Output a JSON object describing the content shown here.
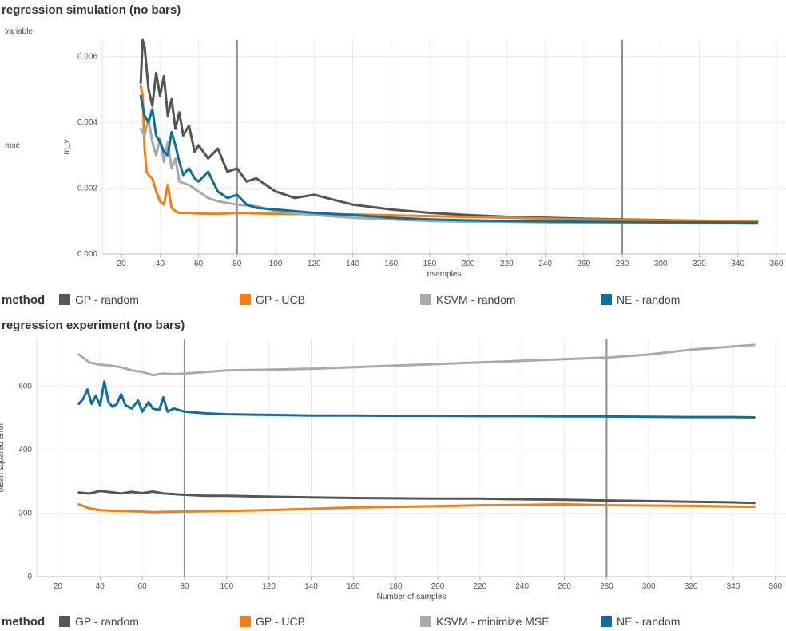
{
  "colors": {
    "GP - random": "#555555",
    "GP - UCB": "#f57e10",
    "KSVM - random": "#aaaaaa",
    "KSVM - minimize MSE": "#aaaaaa",
    "NE - random": "#0d6fa0"
  },
  "top": {
    "title": "regression simulation (no bars)",
    "variable_header": "variable",
    "row_label": "mse",
    "legend_title": "method",
    "legend": [
      "GP - random",
      "GP - UCB",
      "KSVM - random",
      "NE - random"
    ]
  },
  "bottom": {
    "title": "regression experiment (no bars)",
    "legend_title": "method",
    "legend": [
      "GP - random",
      "GP - UCB",
      "KSVM - minimize MSE",
      "NE - random"
    ]
  },
  "chart_data": [
    {
      "type": "line",
      "title": "regression simulation (no bars)",
      "xlabel": "nsamples",
      "ylabel": "m_v",
      "xlim": [
        10,
        365
      ],
      "ylim": [
        0,
        0.0065
      ],
      "xticks": [
        20,
        40,
        60,
        80,
        100,
        120,
        140,
        160,
        180,
        200,
        220,
        240,
        260,
        280,
        300,
        320,
        340,
        360
      ],
      "yticks": [
        0.0,
        0.002,
        0.004,
        0.006
      ],
      "yticks_labels": [
        "0.000",
        "0.002",
        "0.004",
        "0.006"
      ],
      "reference_lines_x": [
        80,
        280
      ],
      "grid": true,
      "series": [
        {
          "name": "GP - random",
          "x": [
            30,
            31,
            32,
            34,
            36,
            38,
            40,
            42,
            44,
            46,
            48,
            50,
            52,
            55,
            58,
            60,
            65,
            70,
            75,
            80,
            85,
            90,
            100,
            110,
            120,
            140,
            160,
            180,
            200,
            220,
            240,
            260,
            280,
            300,
            320,
            340,
            350
          ],
          "values": [
            0.0052,
            0.0065,
            0.0063,
            0.005,
            0.0045,
            0.0055,
            0.0048,
            0.0054,
            0.0042,
            0.0047,
            0.0038,
            0.0043,
            0.0036,
            0.0039,
            0.0031,
            0.0033,
            0.0029,
            0.0032,
            0.0025,
            0.0026,
            0.0022,
            0.0023,
            0.0019,
            0.0017,
            0.0018,
            0.0015,
            0.00135,
            0.00125,
            0.00118,
            0.00113,
            0.0011,
            0.00107,
            0.00105,
            0.00103,
            0.00101,
            0.001,
            0.00099
          ]
        },
        {
          "name": "GP - UCB",
          "x": [
            30,
            31,
            32,
            33,
            34,
            36,
            38,
            40,
            42,
            44,
            46,
            48,
            50,
            55,
            60,
            70,
            80,
            100,
            140,
            180,
            220,
            260,
            300,
            340,
            350
          ],
          "values": [
            0.0051,
            0.0048,
            0.0032,
            0.0025,
            0.0024,
            0.0023,
            0.0019,
            0.0016,
            0.0015,
            0.0021,
            0.0014,
            0.0013,
            0.00125,
            0.00125,
            0.00123,
            0.00122,
            0.00125,
            0.00122,
            0.0012,
            0.00115,
            0.0011,
            0.00105,
            0.00102,
            0.001,
            0.001
          ]
        },
        {
          "name": "KSVM - random",
          "x": [
            30,
            32,
            34,
            36,
            38,
            40,
            42,
            44,
            46,
            48,
            50,
            55,
            60,
            65,
            70,
            80,
            90,
            100,
            120,
            140,
            160,
            180,
            200,
            220,
            240,
            260,
            280,
            300,
            320,
            340,
            350
          ],
          "values": [
            0.0038,
            0.0036,
            0.0041,
            0.0034,
            0.003,
            0.0035,
            0.0028,
            0.0034,
            0.0026,
            0.0029,
            0.0022,
            0.0021,
            0.0019,
            0.0017,
            0.0016,
            0.0015,
            0.00145,
            0.0013,
            0.00118,
            0.0011,
            0.00105,
            0.001,
            0.00098,
            0.00098,
            0.00096,
            0.00095,
            0.00095,
            0.00094,
            0.00093,
            0.00093,
            0.00092
          ]
        },
        {
          "name": "NE - random",
          "x": [
            30,
            32,
            34,
            36,
            38,
            40,
            42,
            44,
            46,
            48,
            50,
            52,
            55,
            58,
            60,
            65,
            70,
            75,
            80,
            85,
            90,
            100,
            110,
            120,
            140,
            160,
            180,
            200,
            220,
            240,
            260,
            280,
            300,
            320,
            340,
            350
          ],
          "values": [
            0.0048,
            0.0042,
            0.004,
            0.0044,
            0.0036,
            0.0034,
            0.0031,
            0.003,
            0.0037,
            0.0033,
            0.0028,
            0.0024,
            0.0026,
            0.0023,
            0.0022,
            0.0025,
            0.0019,
            0.0017,
            0.0018,
            0.0015,
            0.0014,
            0.00135,
            0.0013,
            0.00125,
            0.00118,
            0.0011,
            0.00105,
            0.00102,
            0.001,
            0.00099,
            0.00098,
            0.00097,
            0.00096,
            0.00096,
            0.00095,
            0.00095
          ]
        }
      ]
    },
    {
      "type": "line",
      "title": "regression experiment (no bars)",
      "xlabel": "Number of samples",
      "ylabel": "Mean squared error",
      "xlim": [
        10,
        365
      ],
      "ylim": [
        0,
        750
      ],
      "xticks": [
        20,
        40,
        60,
        80,
        100,
        120,
        140,
        160,
        180,
        200,
        220,
        240,
        260,
        280,
        300,
        320,
        340,
        360
      ],
      "yticks": [
        0,
        200,
        400,
        600
      ],
      "yticks_labels": [
        "0",
        "200",
        "400",
        "600"
      ],
      "reference_lines_x": [
        80,
        280
      ],
      "grid": true,
      "series": [
        {
          "name": "GP - random",
          "x": [
            30,
            35,
            40,
            45,
            50,
            55,
            60,
            65,
            70,
            80,
            90,
            100,
            120,
            140,
            160,
            180,
            200,
            220,
            240,
            260,
            280,
            300,
            320,
            340,
            350
          ],
          "values": [
            265,
            262,
            270,
            266,
            262,
            267,
            263,
            268,
            262,
            258,
            255,
            255,
            252,
            250,
            248,
            247,
            246,
            246,
            244,
            242,
            240,
            238,
            236,
            234,
            232
          ]
        },
        {
          "name": "GP - UCB",
          "x": [
            30,
            35,
            40,
            45,
            50,
            55,
            60,
            65,
            70,
            80,
            90,
            100,
            120,
            140,
            160,
            180,
            200,
            220,
            240,
            260,
            280,
            300,
            320,
            340,
            350
          ],
          "values": [
            228,
            215,
            210,
            208,
            207,
            206,
            205,
            203,
            204,
            205,
            206,
            207,
            210,
            214,
            218,
            220,
            222,
            225,
            226,
            228,
            225,
            224,
            223,
            221,
            220
          ]
        },
        {
          "name": "KSVM - minimize MSE",
          "x": [
            30,
            35,
            40,
            45,
            50,
            55,
            60,
            65,
            70,
            75,
            80,
            90,
            100,
            120,
            140,
            160,
            180,
            200,
            220,
            240,
            260,
            280,
            300,
            320,
            340,
            350
          ],
          "values": [
            700,
            675,
            668,
            665,
            660,
            650,
            645,
            635,
            640,
            638,
            640,
            645,
            650,
            652,
            655,
            660,
            665,
            670,
            675,
            680,
            685,
            690,
            700,
            715,
            725,
            730
          ]
        },
        {
          "name": "NE - random",
          "x": [
            30,
            32,
            34,
            36,
            38,
            40,
            42,
            44,
            46,
            48,
            50,
            52,
            55,
            58,
            60,
            63,
            65,
            68,
            70,
            72,
            75,
            80,
            90,
            100,
            120,
            140,
            160,
            180,
            200,
            220,
            240,
            260,
            280,
            300,
            320,
            340,
            350
          ],
          "values": [
            545,
            560,
            590,
            545,
            570,
            540,
            615,
            550,
            535,
            545,
            575,
            540,
            530,
            555,
            520,
            550,
            530,
            525,
            565,
            520,
            530,
            520,
            515,
            512,
            510,
            508,
            508,
            507,
            507,
            506,
            506,
            505,
            505,
            504,
            503,
            503,
            502
          ]
        }
      ]
    }
  ]
}
